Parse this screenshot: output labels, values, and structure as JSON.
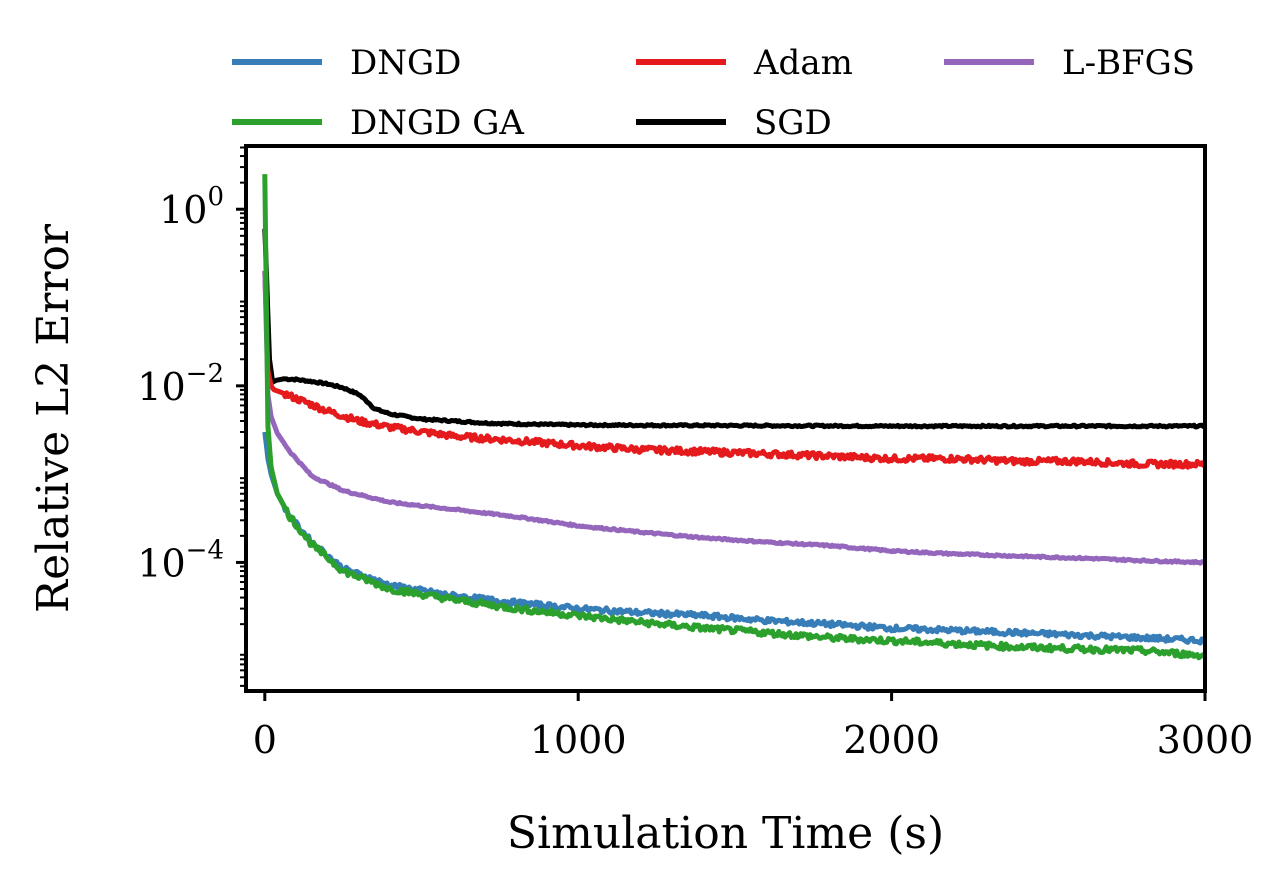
{
  "chart_data": {
    "type": "line",
    "title": "",
    "xlabel": "Simulation Time (s)",
    "ylabel": "Relative L2 Error",
    "yscale": "log",
    "xlim": [
      -60,
      3000
    ],
    "ylim": [
      3.5e-06,
      5.2
    ],
    "xticks": [
      {
        "value": 0,
        "label": "0"
      },
      {
        "value": 1000,
        "label": "1000"
      },
      {
        "value": 2000,
        "label": "2000"
      },
      {
        "value": 3000,
        "label": "3000"
      }
    ],
    "yticks": [
      {
        "value": 1,
        "base": "10",
        "exp": "0"
      },
      {
        "value": 0.01,
        "base": "10",
        "exp": "−2"
      },
      {
        "value": 0.0001,
        "base": "10",
        "exp": "−4"
      }
    ],
    "grid": false,
    "legend": {
      "position": "top",
      "columns": 3
    },
    "series": [
      {
        "name": "DNGD",
        "color": "#377eb8",
        "x": [
          0,
          10,
          20,
          40,
          80,
          150,
          250,
          400,
          600,
          800,
          1000,
          1200,
          1400,
          1600,
          1800,
          2000,
          2200,
          2400,
          2600,
          2800,
          3000
        ],
        "y": [
          0.003,
          0.0015,
          0.001,
          0.0006,
          0.00033,
          0.00017,
          8.5e-05,
          5.5e-05,
          4.2e-05,
          3.5e-05,
          3e-05,
          2.7e-05,
          2.5e-05,
          2.2e-05,
          2e-05,
          1.8e-05,
          1.7e-05,
          1.6e-05,
          1.5e-05,
          1.4e-05,
          1.3e-05
        ]
      },
      {
        "name": "DNGD GA",
        "color": "#2ca02c",
        "x": [
          0,
          5,
          10,
          20,
          40,
          80,
          150,
          250,
          400,
          600,
          800,
          1000,
          1200,
          1400,
          1600,
          1800,
          2000,
          2200,
          2400,
          2600,
          2800,
          3000
        ],
        "y": [
          2.5,
          0.08,
          0.0035,
          0.0012,
          0.0006,
          0.00033,
          0.00016,
          8e-05,
          5e-05,
          3.8e-05,
          3e-05,
          2.5e-05,
          2.1e-05,
          1.8e-05,
          1.6e-05,
          1.4e-05,
          1.3e-05,
          1.2e-05,
          1.1e-05,
          1.05e-05,
          1e-05,
          8.8e-06
        ]
      },
      {
        "name": "Adam",
        "color": "#e41a1c",
        "x": [
          0,
          10,
          20,
          30,
          50,
          100,
          200,
          300,
          400,
          600,
          800,
          1000,
          1200,
          1400,
          1600,
          1800,
          2000,
          2200,
          2400,
          2600,
          2800,
          3000
        ],
        "y": [
          0.2,
          0.015,
          0.01,
          0.009,
          0.0085,
          0.0072,
          0.0052,
          0.004,
          0.0034,
          0.0027,
          0.0024,
          0.0021,
          0.0019,
          0.0018,
          0.0017,
          0.0016,
          0.0015,
          0.0015,
          0.0014,
          0.0014,
          0.0013,
          0.0013
        ]
      },
      {
        "name": "SGD",
        "color": "#000000",
        "x": [
          0,
          5,
          15,
          25,
          35,
          60,
          100,
          150,
          200,
          250,
          300,
          330,
          350,
          400,
          500,
          600,
          700,
          800,
          1000,
          1500,
          2000,
          2500,
          3000
        ],
        "y": [
          0.6,
          0.2,
          0.02,
          0.011,
          0.0115,
          0.012,
          0.0118,
          0.0112,
          0.0105,
          0.0095,
          0.008,
          0.0065,
          0.0055,
          0.0048,
          0.0042,
          0.004,
          0.0038,
          0.0037,
          0.0036,
          0.00355,
          0.0035,
          0.0035,
          0.0035
        ]
      },
      {
        "name": "L-BFGS",
        "color": "#9467bd",
        "x": [
          0,
          5,
          10,
          20,
          40,
          80,
          150,
          250,
          400,
          600,
          800,
          1000,
          1200,
          1400,
          1600,
          1800,
          2000,
          2200,
          2400,
          2600,
          2800,
          3000
        ],
        "y": [
          0.2,
          0.04,
          0.008,
          0.0045,
          0.0029,
          0.0018,
          0.00095,
          0.00065,
          0.00048,
          0.0004,
          0.00033,
          0.00026,
          0.00022,
          0.00019,
          0.00017,
          0.000155,
          0.000135,
          0.000125,
          0.000118,
          0.000112,
          0.000105,
          0.0001
        ]
      }
    ]
  }
}
